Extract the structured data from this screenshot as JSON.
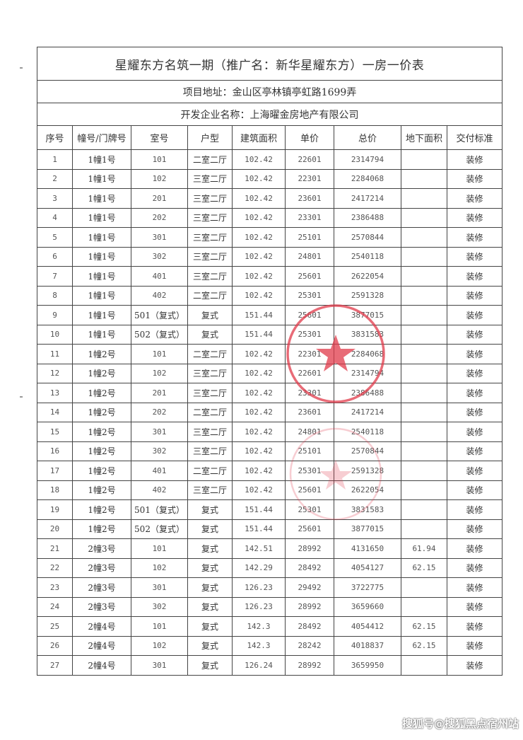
{
  "document": {
    "title": "星耀东方名筑一期（推广名：新华星耀东方）一房一价表",
    "address": "项目地址：金山区亭林镇亭虹路1699弄",
    "developer": "开发企业名称：上海曜金房地产有限公司",
    "columns": [
      "序号",
      "幢号/门牌号",
      "室号",
      "户型",
      "建筑面积",
      "单价",
      "总价",
      "地下面积",
      "交付标准"
    ],
    "rows": [
      [
        "1",
        "1幢1号",
        "101",
        "二室二厅",
        "102.42",
        "22601",
        "2314794",
        "",
        "装修"
      ],
      [
        "2",
        "1幢1号",
        "102",
        "三室二厅",
        "102.42",
        "22301",
        "2284068",
        "",
        "装修"
      ],
      [
        "3",
        "1幢1号",
        "201",
        "三室二厅",
        "102.42",
        "23601",
        "2417214",
        "",
        "装修"
      ],
      [
        "4",
        "1幢1号",
        "202",
        "三室二厅",
        "102.42",
        "23301",
        "2386488",
        "",
        "装修"
      ],
      [
        "5",
        "1幢1号",
        "301",
        "三室二厅",
        "102.42",
        "25101",
        "2570844",
        "",
        "装修"
      ],
      [
        "6",
        "1幢1号",
        "302",
        "三室二厅",
        "102.42",
        "24801",
        "2540118",
        "",
        "装修"
      ],
      [
        "7",
        "1幢1号",
        "401",
        "三室二厅",
        "102.42",
        "25601",
        "2622054",
        "",
        "装修"
      ],
      [
        "8",
        "1幢1号",
        "402",
        "二室二厅",
        "102.42",
        "25301",
        "2591328",
        "",
        "装修"
      ],
      [
        "9",
        "1幢1号",
        "501（复式）",
        "复式",
        "151.44",
        "25601",
        "3877015",
        "",
        "装修"
      ],
      [
        "10",
        "1幢1号",
        "502（复式）",
        "复式",
        "151.44",
        "25301",
        "3831583",
        "",
        "装修"
      ],
      [
        "11",
        "1幢2号",
        "101",
        "二室二厅",
        "102.42",
        "22301",
        "2284068",
        "",
        "装修"
      ],
      [
        "12",
        "1幢2号",
        "102",
        "三室二厅",
        "102.42",
        "22601",
        "2314794",
        "",
        "装修"
      ],
      [
        "13",
        "1幢2号",
        "201",
        "三室二厅",
        "102.42",
        "23301",
        "2386488",
        "",
        "装修"
      ],
      [
        "14",
        "1幢2号",
        "202",
        "二室二厅",
        "102.42",
        "23601",
        "2417214",
        "",
        "装修"
      ],
      [
        "15",
        "1幢2号",
        "301",
        "三室二厅",
        "102.42",
        "24801",
        "2540118",
        "",
        "装修"
      ],
      [
        "16",
        "1幢2号",
        "302",
        "三室二厅",
        "102.42",
        "25101",
        "2570844",
        "",
        "装修"
      ],
      [
        "17",
        "1幢2号",
        "401",
        "二室二厅",
        "102.42",
        "25301",
        "2591328",
        "",
        "装修"
      ],
      [
        "18",
        "1幢2号",
        "402",
        "三室二厅",
        "102.42",
        "25601",
        "2622054",
        "",
        "装修"
      ],
      [
        "19",
        "1幢2号",
        "501（复式）",
        "复式",
        "151.44",
        "25301",
        "3831583",
        "",
        "装修"
      ],
      [
        "20",
        "1幢2号",
        "502（复式）",
        "复式",
        "151.44",
        "25601",
        "3877015",
        "",
        "装修"
      ],
      [
        "21",
        "2幢3号",
        "101",
        "复式",
        "142.51",
        "28992",
        "4131650",
        "61.94",
        "装修"
      ],
      [
        "22",
        "2幢3号",
        "102",
        "复式",
        "142.29",
        "28492",
        "4054127",
        "62.15",
        "装修"
      ],
      [
        "23",
        "2幢3号",
        "301",
        "复式",
        "126.23",
        "29492",
        "3722775",
        "",
        "装修"
      ],
      [
        "24",
        "2幢3号",
        "302",
        "复式",
        "126.23",
        "28992",
        "3659660",
        "",
        "装修"
      ],
      [
        "25",
        "2幢4号",
        "101",
        "复式",
        "142.3",
        "28492",
        "4054412",
        "62.15",
        "装修"
      ],
      [
        "26",
        "2幢4号",
        "102",
        "复式",
        "142.3",
        "28242",
        "4018837",
        "62.15",
        "装修"
      ],
      [
        "27",
        "2幢4号",
        "301",
        "复式",
        "126.24",
        "28992",
        "3659950",
        "",
        "装修"
      ]
    ]
  },
  "stamp_color": "#e0394a",
  "watermark": "搜狐号@搜狐黑点宿州站"
}
